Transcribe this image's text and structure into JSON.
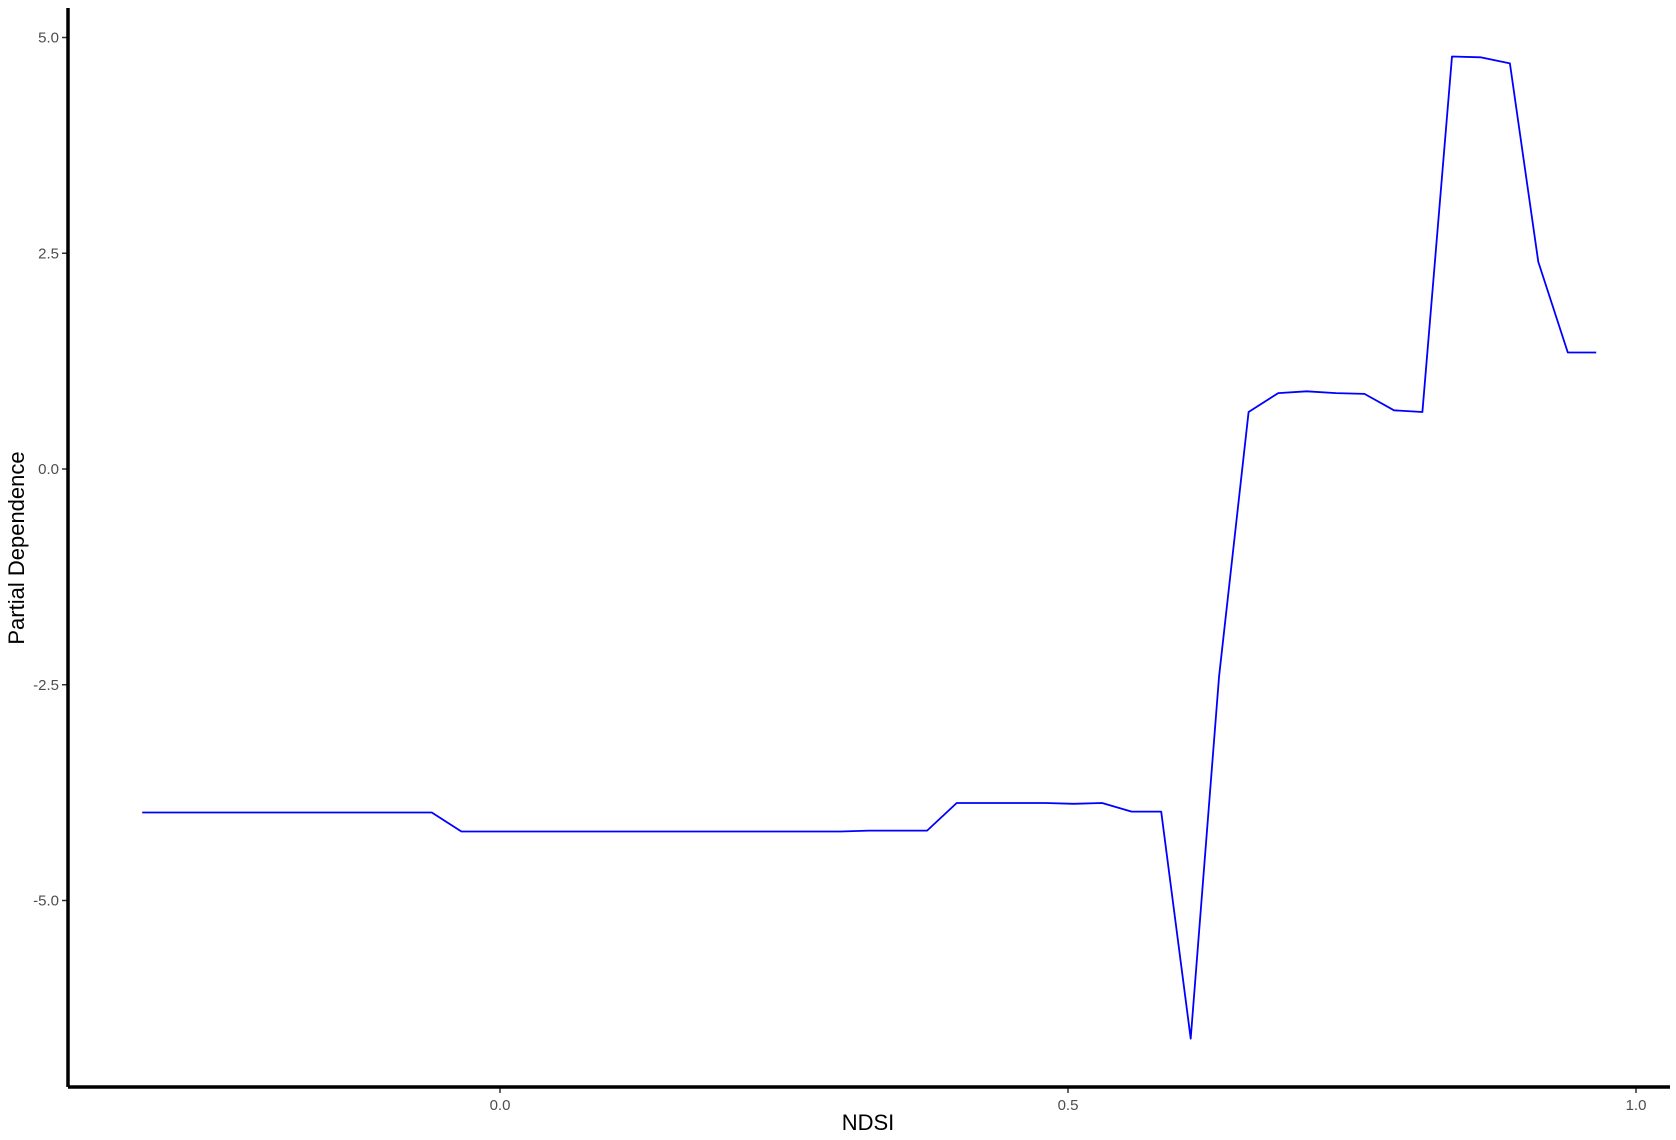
{
  "chart_data": {
    "type": "line",
    "title": "",
    "xlabel": "NDSI",
    "ylabel": "Partial Dependence",
    "xlim": [
      -0.38,
      1.03
    ],
    "ylim": [
      -7.2,
      5.4
    ],
    "x_ticks": [
      0.0,
      0.5,
      1.0
    ],
    "x_tick_labels": [
      "0.0",
      "0.5",
      "1.0"
    ],
    "y_ticks": [
      5.0,
      2.5,
      0.0,
      -2.5,
      -5.0
    ],
    "y_tick_labels": [
      "5.0",
      "2.5",
      "0.0",
      "-2.5",
      "-5.0"
    ],
    "grid": false,
    "legend": "none",
    "line_color": "#0000ff",
    "series": [
      {
        "x": [
          -0.315,
          -0.06,
          -0.034,
          0.0,
          0.1,
          0.2,
          0.3,
          0.325,
          0.376,
          0.402,
          0.45,
          0.48,
          0.505,
          0.53,
          0.556,
          0.582,
          0.608,
          0.633,
          0.659,
          0.685,
          0.71,
          0.736,
          0.761,
          0.787,
          0.812,
          0.838,
          0.863,
          0.889,
          0.914,
          0.94,
          0.965
        ],
        "y": [
          -3.98,
          -3.98,
          -4.2,
          -4.2,
          -4.2,
          -4.2,
          -4.2,
          -4.19,
          -4.19,
          -3.87,
          -3.87,
          -3.87,
          -3.88,
          -3.87,
          -3.97,
          -3.97,
          -6.6,
          -2.4,
          0.66,
          0.88,
          0.9,
          0.88,
          0.87,
          0.68,
          0.66,
          4.78,
          4.77,
          4.7,
          2.4,
          1.35,
          1.35
        ]
      }
    ]
  }
}
